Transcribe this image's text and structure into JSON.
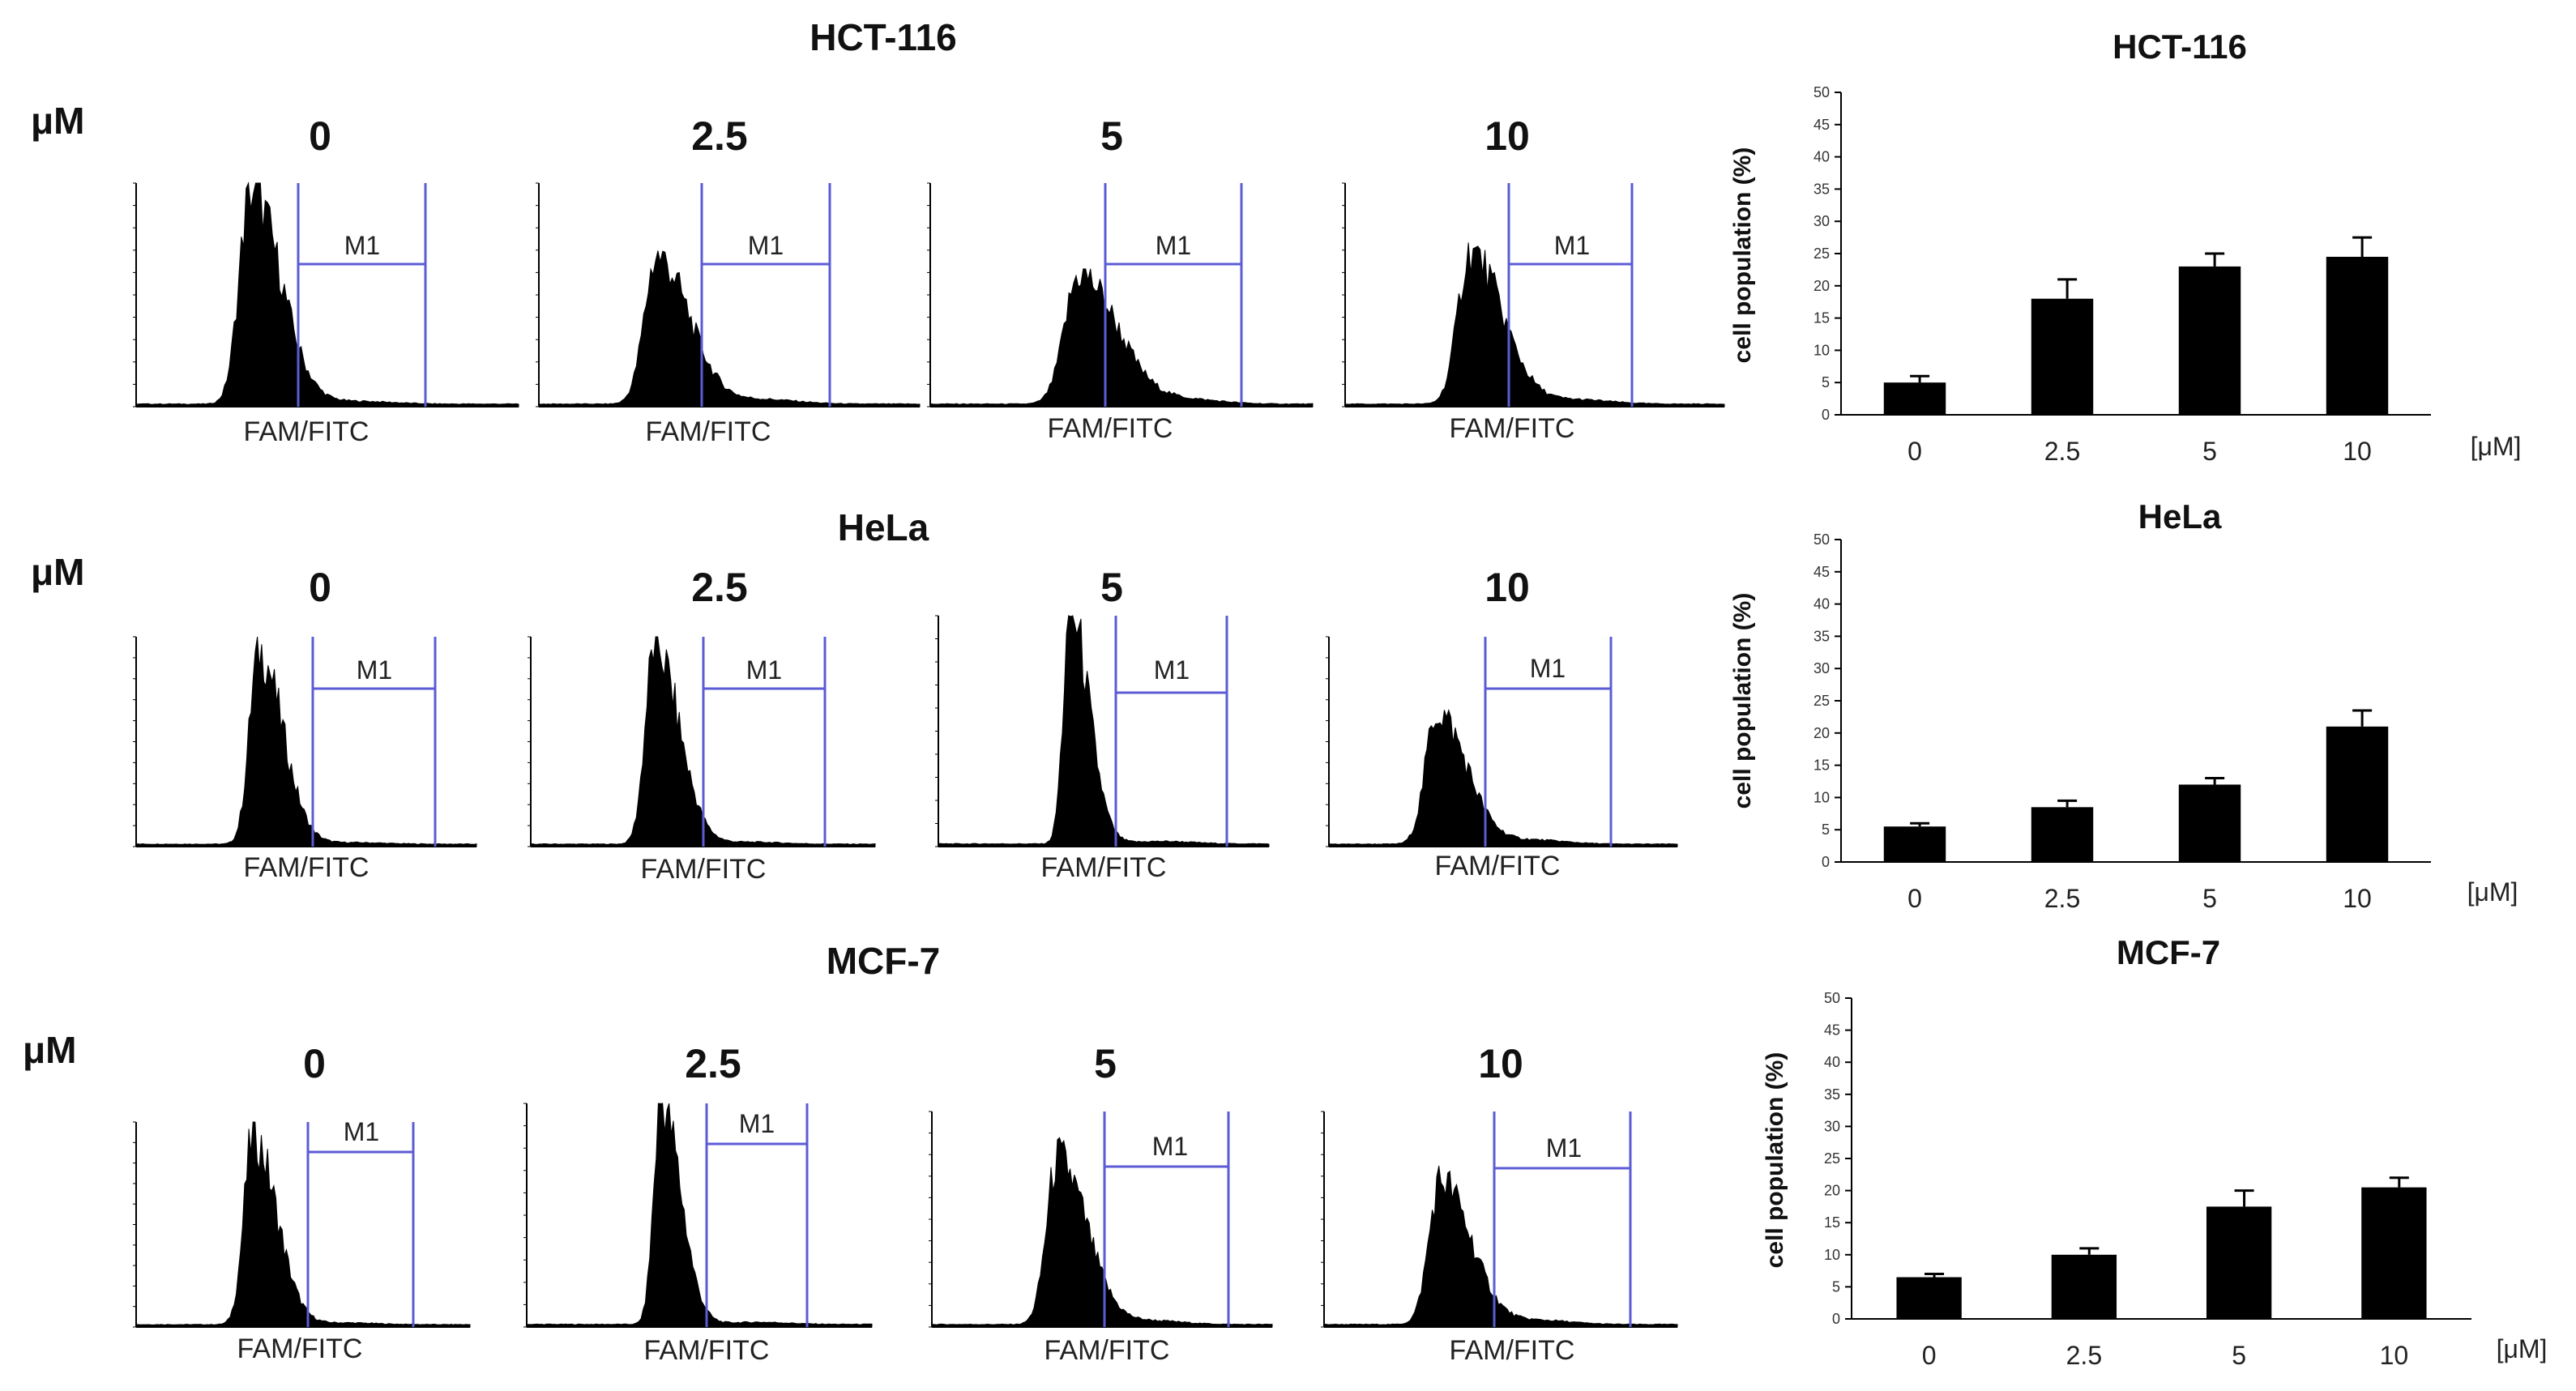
{
  "figure": {
    "unit_label": "μM",
    "histogram_xaxis_label": "FAM/FITC",
    "gate_label": "M1",
    "concentration_labels": [
      "0",
      "2.5",
      "5",
      "10"
    ],
    "cell_lines": [
      "HCT-116",
      "HeLa",
      "MCF-7"
    ]
  },
  "chart_data": [
    {
      "type": "bar",
      "title": "HCT-116",
      "categories": [
        "0",
        "2.5",
        "5",
        "10"
      ],
      "values": [
        5,
        18,
        23,
        24.5
      ],
      "errors": [
        1,
        3,
        2,
        3
      ],
      "xlabel": "[μM]",
      "ylabel": "cell population (%)",
      "ylim": [
        0,
        50
      ],
      "yticks": [
        0,
        5,
        10,
        15,
        20,
        25,
        30,
        35,
        40,
        45,
        50
      ]
    },
    {
      "type": "bar",
      "title": "HeLa",
      "categories": [
        "0",
        "2.5",
        "5",
        "10"
      ],
      "values": [
        5.5,
        8.5,
        12,
        21
      ],
      "errors": [
        0.5,
        1,
        1,
        2.5
      ],
      "xlabel": "[μM]",
      "ylabel": "cell population (%)",
      "ylim": [
        0,
        50
      ],
      "yticks": [
        0,
        5,
        10,
        15,
        20,
        25,
        30,
        35,
        40,
        45,
        50
      ]
    },
    {
      "type": "bar",
      "title": "MCF-7",
      "categories": [
        "0",
        "2.5",
        "5",
        "10"
      ],
      "values": [
        6.5,
        10,
        17.5,
        20.5
      ],
      "errors": [
        0.5,
        1,
        2.5,
        1.5
      ],
      "xlabel": "[μM]",
      "ylabel": "cell population (%)",
      "ylim": [
        0,
        50
      ],
      "yticks": [
        0,
        5,
        10,
        15,
        20,
        25,
        30,
        35,
        40,
        45,
        50
      ]
    }
  ],
  "histogram_shapes": {
    "HCT-116": [
      {
        "peak": 0.3,
        "height": 0.96,
        "width": 0.055,
        "tail": 0.1
      },
      {
        "peak": 0.31,
        "height": 0.66,
        "width": 0.06,
        "tail": 0.17
      },
      {
        "peak": 0.39,
        "height": 0.58,
        "width": 0.07,
        "tail": 0.17
      },
      {
        "peak": 0.33,
        "height": 0.68,
        "width": 0.06,
        "tail": 0.16
      }
    ],
    "HeLa": [
      {
        "peak": 0.36,
        "height": 0.92,
        "width": 0.05,
        "tail": 0.06
      },
      {
        "peak": 0.36,
        "height": 0.95,
        "width": 0.05,
        "tail": 0.08
      },
      {
        "peak": 0.4,
        "height": 1.0,
        "width": 0.04,
        "tail": 0.09
      },
      {
        "peak": 0.31,
        "height": 0.63,
        "width": 0.06,
        "tail": 0.16
      }
    ],
    "MCF-7": [
      {
        "peak": 0.35,
        "height": 0.92,
        "width": 0.05,
        "tail": 0.07
      },
      {
        "peak": 0.39,
        "height": 1.0,
        "width": 0.04,
        "tail": 0.08
      },
      {
        "peak": 0.37,
        "height": 0.77,
        "width": 0.06,
        "tail": 0.14
      },
      {
        "peak": 0.33,
        "height": 0.67,
        "width": 0.06,
        "tail": 0.16
      }
    ]
  }
}
